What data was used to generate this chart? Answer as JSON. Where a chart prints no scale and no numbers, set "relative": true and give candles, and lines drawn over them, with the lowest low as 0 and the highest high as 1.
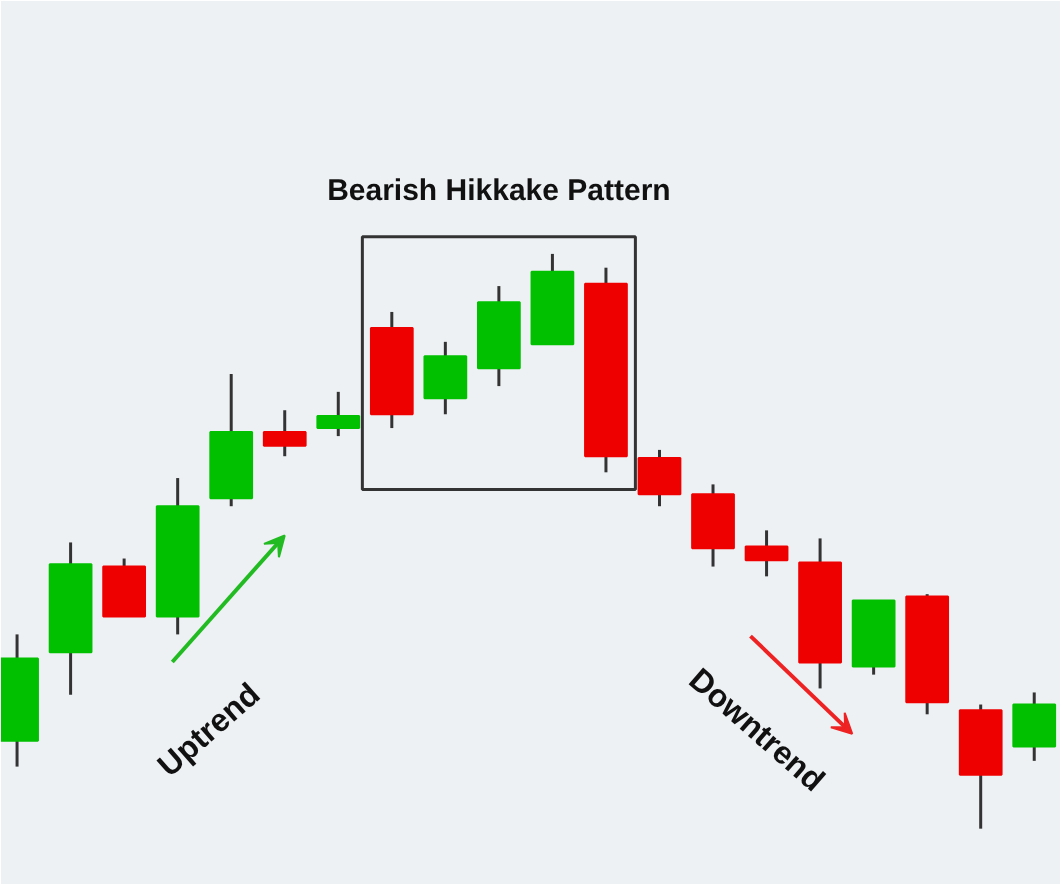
{
  "chart_data": {
    "type": "candlestick",
    "relative": true,
    "categories": [
      null,
      null,
      null,
      null,
      null,
      null,
      null,
      null,
      null,
      null,
      null,
      null,
      null,
      null,
      null,
      null,
      null,
      null,
      null,
      null
    ],
    "ohlc": [
      [
        0.153,
        0.338,
        0.108,
        0.296
      ],
      [
        0.307,
        0.498,
        0.233,
        0.46
      ],
      [
        0.456,
        0.47,
        0.369,
        0.369
      ],
      [
        0.369,
        0.61,
        0.338,
        0.561
      ],
      [
        0.575,
        0.791,
        0.561,
        0.69
      ],
      [
        0.69,
        0.728,
        0.648,
        0.666
      ],
      [
        0.697,
        0.76,
        0.683,
        0.718
      ],
      [
        0.871,
        0.899,
        0.697,
        0.721
      ],
      [
        0.749,
        0.847,
        0.721,
        0.822
      ],
      [
        0.801,
        0.944,
        0.77,
        0.916
      ],
      [
        0.843,
        1,
        0.843,
        0.969
      ],
      [
        0.948,
        0.976,
        0.62,
        0.648
      ],
      [
        0.645,
        0.659,
        0.561,
        0.582
      ],
      [
        0.582,
        0.599,
        0.456,
        0.488
      ],
      [
        0.491,
        0.519,
        0.439,
        0.467
      ],
      [
        0.463,
        0.505,
        0.244,
        0.289
      ],
      [
        0.282,
        0.397,
        0.268,
        0.397
      ],
      [
        0.404,
        0.408,
        0.199,
        0.22
      ],
      [
        0.206,
        0.216,
        0,
        0.094
      ],
      [
        0.143,
        0.237,
        0.118,
        0.216
      ]
    ],
    "colors": [
      "#00c000",
      "#00c000",
      "#ee0000",
      "#00c000",
      "#00c000",
      "#ee0000",
      "#00c000",
      "#ee0000",
      "#00c000",
      "#00c000",
      "#00c000",
      "#ee0000",
      "#ee0000",
      "#ee0000",
      "#ee0000",
      "#ee0000",
      "#00c000",
      "#ee0000",
      "#ee0000",
      "#00c000"
    ],
    "annotations": [
      "Bearish Hikkake Pattern",
      "Uptrend",
      "Downtrend"
    ]
  }
}
